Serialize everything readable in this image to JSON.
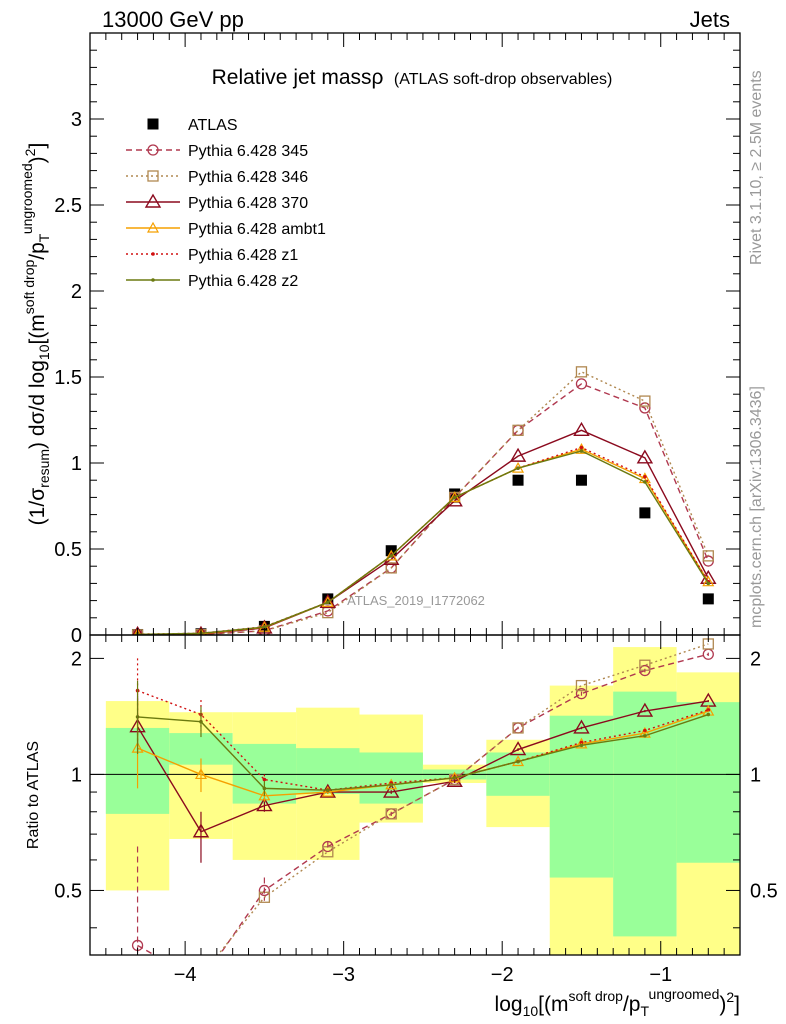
{
  "header": {
    "left": "13000 GeV pp",
    "right": "Jets"
  },
  "title": {
    "main": "Relative jet massρ",
    "sub": "(ATLAS soft-drop observables)"
  },
  "side_labels": {
    "rivet": "Rivet 3.1.10, ≥ 2.5M events",
    "mcplots": "mcplots.cern.ch [arXiv:1306.3436]"
  },
  "watermark": "ATLAS_2019_I1772062",
  "axes": {
    "top_ylabel": "(1/σresum) dσ/d log10[(msoft drop/pTungroomed)2]",
    "bottom_ylabel": "Ratio to ATLAS",
    "xlabel": "log10[(msoft drop/pTungroomed)2]",
    "x_ticks": [
      "−4",
      "−3",
      "−2",
      "−1"
    ],
    "top_y_ticks": [
      "0",
      "0.5",
      "1",
      "1.5",
      "2",
      "2.5",
      "3"
    ],
    "bottom_y_ticks": [
      "0.5",
      "1",
      "2"
    ]
  },
  "colors": {
    "atlas": "#000000",
    "p345": "#b0384f",
    "p346": "#b08850",
    "p370": "#8b0a1e",
    "ambt1": "#f5a000",
    "z1": "#d01010",
    "z2": "#6b7a10",
    "band_green": "#99ff99",
    "band_yellow": "#ffff88"
  },
  "chart_data": {
    "type": "line",
    "xlim": [
      -4.6,
      -0.5
    ],
    "top_ylim": [
      0,
      3.5
    ],
    "ratio_ylim": [
      0.34,
      2.3
    ],
    "ratio_log_scale": true,
    "x": [
      -4.3,
      -3.9,
      -3.5,
      -3.1,
      -2.7,
      -2.3,
      -1.9,
      -1.5,
      -1.1,
      -0.7
    ],
    "bin_edges": [
      -4.5,
      -4.1,
      -3.7,
      -3.3,
      -2.9,
      -2.5,
      -2.1,
      -1.7,
      -1.3,
      -0.9,
      -0.5
    ],
    "legend": [
      "ATLAS",
      "Pythia 6.428 345",
      "Pythia 6.428 346",
      "Pythia 6.428 370",
      "Pythia 6.428 ambt1",
      "Pythia 6.428 z1",
      "Pythia 6.428 z2"
    ],
    "series": [
      {
        "name": "ATLAS",
        "values": [
          0.003,
          0.007,
          0.05,
          0.21,
          0.49,
          0.82,
          0.9,
          0.9,
          0.71,
          0.21
        ]
      },
      {
        "name": "Pythia 6.428 345",
        "values": [
          0.001,
          0.002,
          0.025,
          0.14,
          0.39,
          0.8,
          1.19,
          1.46,
          1.32,
          0.43
        ]
      },
      {
        "name": "Pythia 6.428 346",
        "values": [
          0.001,
          0.002,
          0.024,
          0.13,
          0.39,
          0.8,
          1.19,
          1.53,
          1.36,
          0.46
        ]
      },
      {
        "name": "Pythia 6.428 370",
        "values": [
          0.004,
          0.005,
          0.041,
          0.19,
          0.44,
          0.78,
          1.04,
          1.19,
          1.03,
          0.33
        ]
      },
      {
        "name": "Pythia 6.428 ambt1",
        "values": [
          0.0035,
          0.007,
          0.045,
          0.19,
          0.46,
          0.8,
          0.97,
          1.08,
          0.91,
          0.31
        ]
      },
      {
        "name": "Pythia 6.428 z1",
        "values": [
          0.005,
          0.01,
          0.048,
          0.19,
          0.46,
          0.8,
          0.97,
          1.09,
          0.92,
          0.31
        ]
      },
      {
        "name": "Pythia 6.428 z2",
        "values": [
          0.0042,
          0.0098,
          0.046,
          0.19,
          0.46,
          0.8,
          0.97,
          1.07,
          0.89,
          0.3
        ]
      }
    ],
    "ratios": [
      {
        "name": "Pythia 6.428 345",
        "values": [
          0.36,
          0.29,
          0.5,
          0.65,
          0.79,
          0.97,
          1.32,
          1.62,
          1.86,
          2.05
        ]
      },
      {
        "name": "Pythia 6.428 346",
        "values": [
          0.32,
          0.3,
          0.48,
          0.63,
          0.79,
          0.97,
          1.32,
          1.7,
          1.92,
          2.18
        ]
      },
      {
        "name": "Pythia 6.428 370",
        "values": [
          1.33,
          0.71,
          0.83,
          0.9,
          0.9,
          0.96,
          1.16,
          1.32,
          1.46,
          1.55
        ]
      },
      {
        "name": "Pythia 6.428 ambt1",
        "values": [
          1.17,
          1.0,
          0.88,
          0.9,
          0.94,
          0.98,
          1.08,
          1.2,
          1.28,
          1.46
        ]
      },
      {
        "name": "Pythia 6.428 z1",
        "values": [
          1.65,
          1.43,
          0.97,
          0.91,
          0.95,
          0.98,
          1.08,
          1.21,
          1.3,
          1.47
        ]
      },
      {
        "name": "Pythia 6.428 z2",
        "values": [
          1.41,
          1.37,
          0.92,
          0.91,
          0.94,
          0.98,
          1.08,
          1.19,
          1.26,
          1.43
        ]
      }
    ],
    "ratio_errors": [
      {
        "name": "Pythia 6.428 345",
        "low": [
          0.32,
          null,
          0.47,
          0.64,
          0.78,
          0.96,
          1.31,
          1.6,
          1.84,
          2.03
        ],
        "high": [
          0.65,
          null,
          0.54,
          0.67,
          0.8,
          0.98,
          1.33,
          1.64,
          1.88,
          2.07
        ]
      },
      {
        "name": "Pythia 6.428 370",
        "low": [
          1.2,
          0.59,
          0.8,
          0.89,
          0.89,
          0.95,
          1.15,
          1.31,
          1.45,
          1.54
        ],
        "high": [
          1.6,
          0.8,
          0.86,
          0.91,
          0.91,
          0.97,
          1.17,
          1.33,
          1.47,
          1.56
        ]
      },
      {
        "name": "Pythia 6.428 ambt1",
        "low": [
          0.92,
          0.9,
          0.85,
          0.89,
          0.93,
          0.97,
          1.07,
          1.19,
          1.27,
          1.45
        ],
        "high": [
          1.3,
          1.1,
          0.91,
          0.91,
          0.95,
          0.99,
          1.09,
          1.21,
          1.29,
          1.47
        ]
      },
      {
        "name": "Pythia 6.428 z1",
        "low": [
          1.15,
          1.3,
          0.94,
          0.9,
          0.94,
          0.97,
          1.07,
          1.2,
          1.29,
          1.46
        ],
        "high": [
          2.0,
          1.56,
          1.0,
          0.92,
          0.96,
          0.99,
          1.09,
          1.22,
          1.31,
          1.48
        ]
      },
      {
        "name": "Pythia 6.428 z2",
        "low": [
          1.13,
          1.25,
          0.88,
          0.9,
          0.93,
          0.97,
          1.07,
          1.18,
          1.25,
          1.42
        ],
        "high": [
          1.75,
          1.5,
          0.96,
          0.92,
          0.95,
          0.99,
          1.09,
          1.2,
          1.27,
          1.44
        ]
      }
    ],
    "atlas_band_inner": {
      "low": [
        0.79,
        1.06,
        0.84,
        0.89,
        0.84,
        0.97,
        0.88,
        0.54,
        0.38,
        0.59
      ],
      "high": [
        1.32,
        1.28,
        1.2,
        1.17,
        1.14,
        1.03,
        1.14,
        1.42,
        1.64,
        1.54
      ]
    },
    "atlas_band_outer": {
      "low": [
        0.5,
        0.68,
        0.6,
        0.6,
        0.75,
        0.95,
        0.73,
        0.33,
        0.33,
        0.33
      ],
      "high": [
        1.55,
        1.45,
        1.45,
        1.49,
        1.43,
        1.06,
        1.23,
        1.7,
        2.14,
        1.84
      ]
    }
  }
}
